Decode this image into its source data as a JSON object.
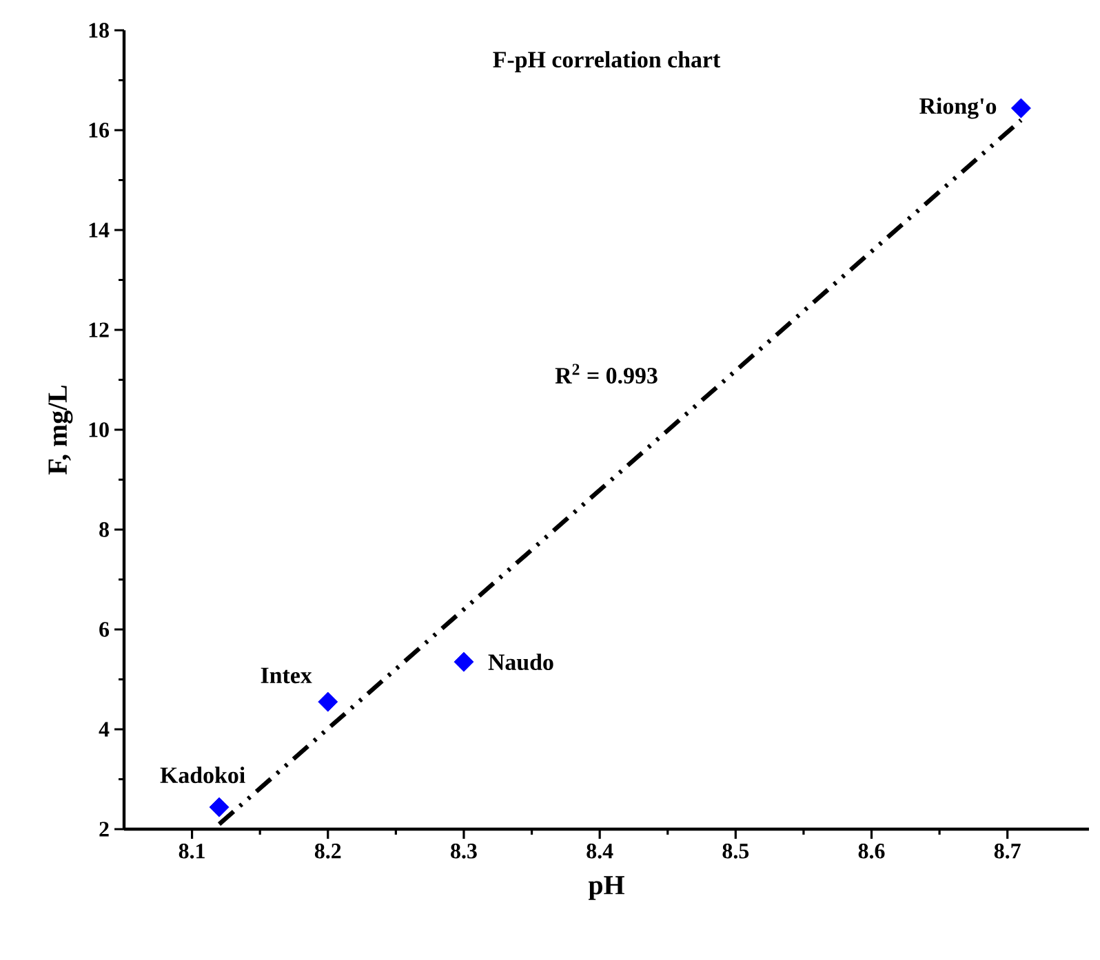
{
  "chart_data": {
    "type": "scatter",
    "title": "F-pH correlation chart",
    "xlabel": "pH",
    "ylabel": "F, mg/L",
    "xlim": [
      8.05,
      8.76
    ],
    "ylim": [
      2,
      18
    ],
    "xticks": [
      8.1,
      8.2,
      8.3,
      8.4,
      8.5,
      8.6,
      8.7
    ],
    "yticks": [
      2,
      4,
      6,
      8,
      10,
      12,
      14,
      16,
      18
    ],
    "grid": false,
    "series": [
      {
        "color": "#0000ff",
        "marker": "diamond",
        "x": [
          8.12,
          8.2,
          8.3,
          8.71
        ],
        "values": [
          2.44,
          4.55,
          5.35,
          16.44
        ]
      },
      {
        "type": "line",
        "color": "#000000",
        "line_style": "dashed",
        "marker": "none",
        "x": [
          8.12,
          8.71
        ],
        "values": [
          2.1,
          16.2
        ]
      }
    ],
    "annotations": [
      {
        "text": "Kadokoi",
        "x": 8.12,
        "y": 2.44
      },
      {
        "text": "Intex",
        "x": 8.2,
        "y": 4.55
      },
      {
        "text": "Naudo",
        "x": 8.3,
        "y": 5.35
      },
      {
        "text": "Riong'o",
        "x": 8.71,
        "y": 16.44
      },
      "R$^{2}$ = 0.993"
    ]
  }
}
